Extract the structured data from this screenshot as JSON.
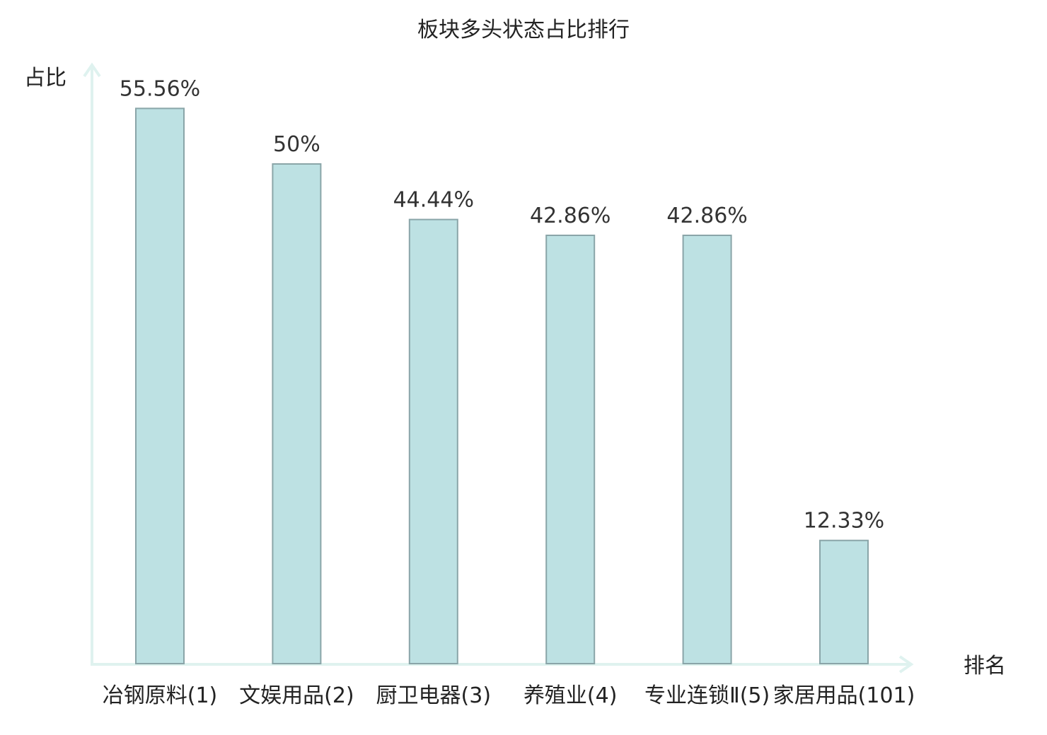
{
  "chart_data": {
    "type": "bar",
    "title": "板块多头状态占比排行",
    "ylabel": "占比",
    "xlabel": "排名",
    "unit": "%",
    "categories": [
      "冶钢原料(1)",
      "文娱用品(2)",
      "厨卫电器(3)",
      "养殖业(4)",
      "专业连锁Ⅱ(5)",
      "家居用品(101)"
    ],
    "values": [
      55.56,
      50,
      44.44,
      42.86,
      42.86,
      12.33
    ],
    "value_labels": [
      "55.56%",
      "50%",
      "44.44%",
      "42.86%",
      "42.86%",
      "12.33%"
    ],
    "highlight_index": 5,
    "ylim": [
      0,
      60
    ],
    "grid": false,
    "legend": "none",
    "colors": {
      "bar_fill": "#bde1e3",
      "bar_stroke": "#8aa5a8",
      "axis": "#dff2ef",
      "highlight_label": "#e01010",
      "text": "#222222"
    }
  }
}
